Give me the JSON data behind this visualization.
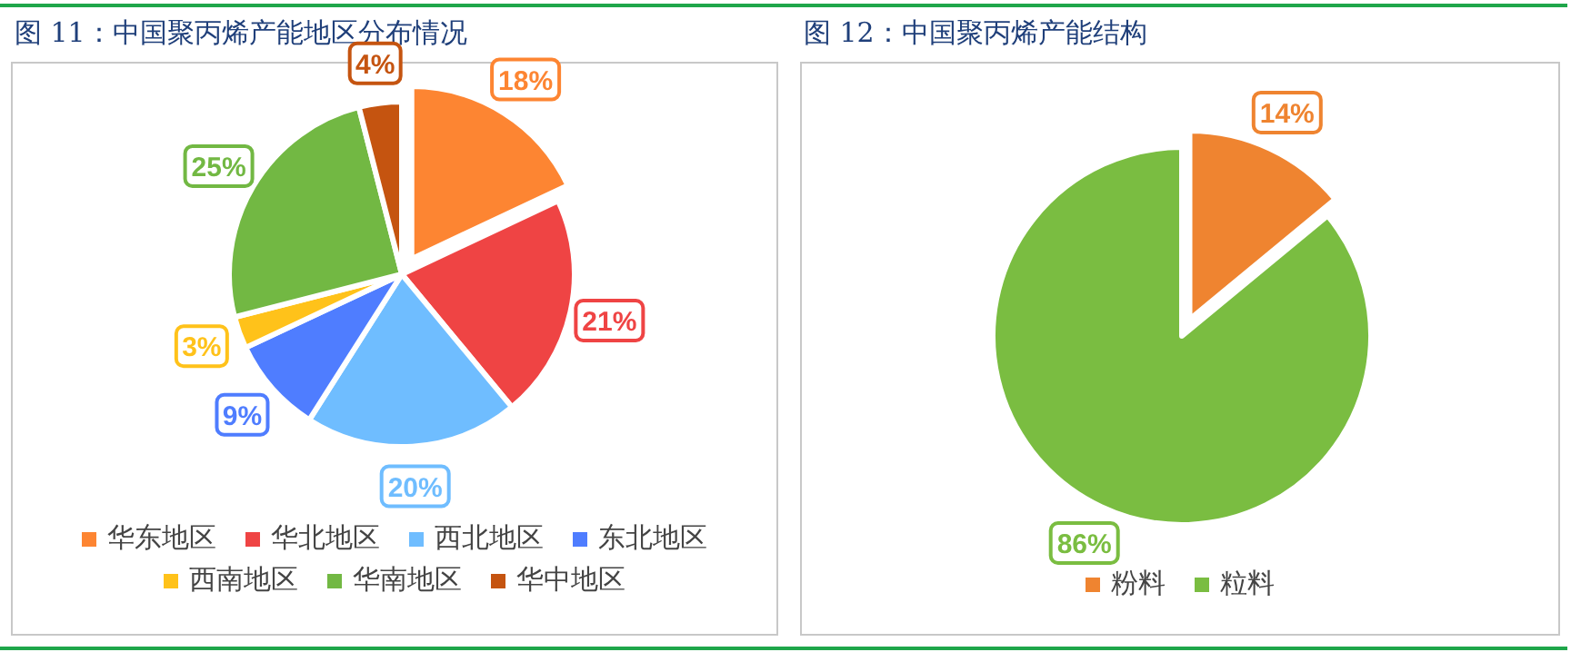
{
  "chart_data": [
    {
      "type": "pie",
      "title": "图 11：中国聚丙烯产能地区分布情况",
      "categories": [
        "华东地区",
        "华北地区",
        "西北地区",
        "东北地区",
        "西南地区",
        "华南地区",
        "华中地区"
      ],
      "values": [
        18,
        21,
        20,
        9,
        3,
        25,
        4
      ],
      "colors": [
        "#fd8532",
        "#ef4444",
        "#6fbdff",
        "#4f7dff",
        "#ffc21a",
        "#72b843",
        "#c55410"
      ],
      "value_labels": [
        "18%",
        "21%",
        "20%",
        "9%",
        "3%",
        "25%",
        "4%"
      ],
      "legend": "bottom"
    },
    {
      "type": "pie",
      "title": "图 12：中国聚丙烯产能结构",
      "categories": [
        "粉料",
        "粒料"
      ],
      "values": [
        14,
        86
      ],
      "colors": [
        "#ef8430",
        "#7abd41"
      ],
      "value_labels": [
        "14%",
        "86%"
      ],
      "legend": "bottom"
    }
  ]
}
